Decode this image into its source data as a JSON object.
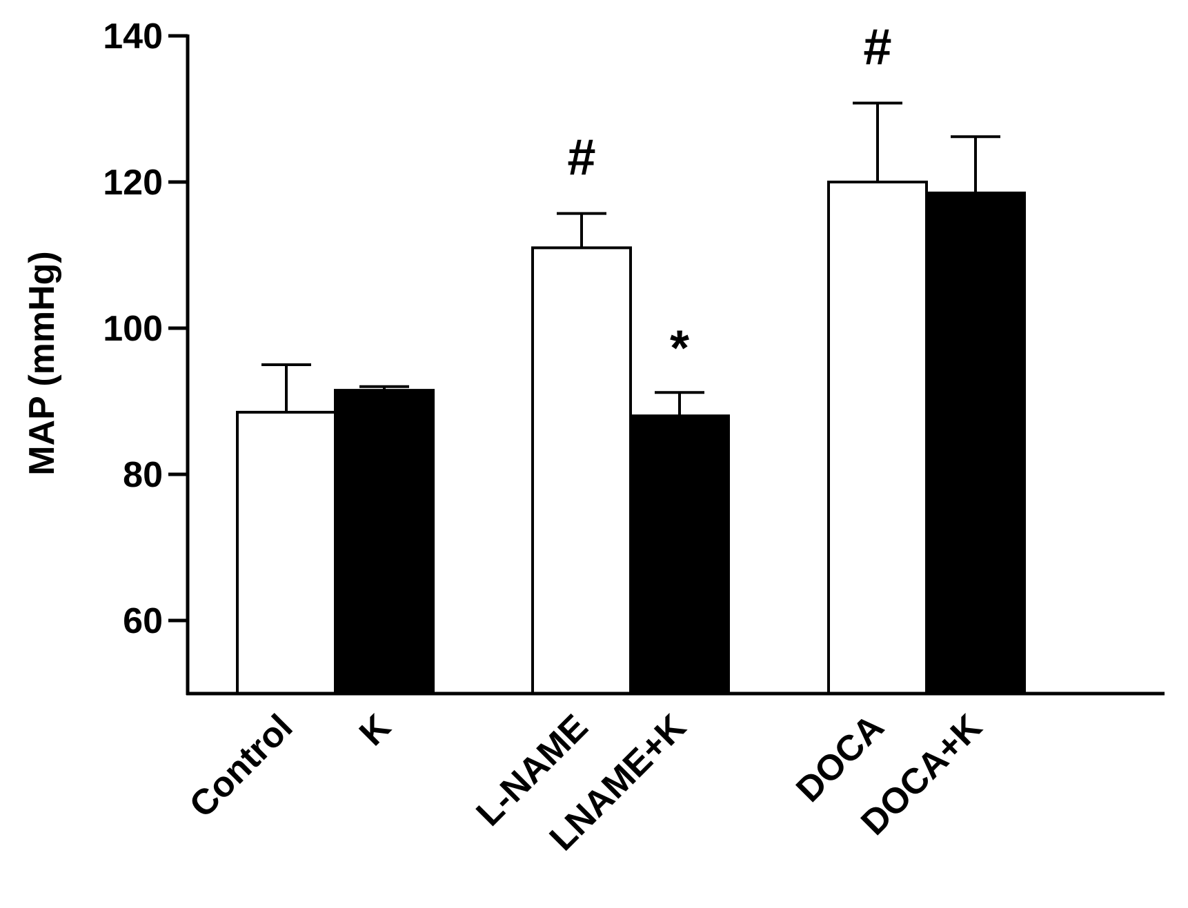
{
  "chart_data": {
    "type": "bar",
    "title": "",
    "xlabel": "",
    "ylabel": "MAP (mmHg)",
    "ylim": [
      50,
      140
    ],
    "yticks": [
      60,
      80,
      100,
      120,
      140
    ],
    "grid": false,
    "categories": [
      "Control",
      "K",
      "L-NAME",
      "LNAME+K",
      "DOCA",
      "DOCA+K"
    ],
    "groups": [
      {
        "members": [
          0,
          1
        ]
      },
      {
        "members": [
          2,
          3
        ]
      },
      {
        "members": [
          4,
          5
        ]
      }
    ],
    "values": [
      88.5,
      91.5,
      111,
      88,
      120,
      118.5
    ],
    "errors": [
      6.5,
      0.5,
      4.7,
      3.2,
      10.8,
      7.7
    ],
    "fills": [
      "#ffffff",
      "#000000",
      "#ffffff",
      "#000000",
      "#ffffff",
      "#000000"
    ],
    "annotations": [
      {
        "bar": 2,
        "text": "#"
      },
      {
        "bar": 3,
        "text": "*"
      },
      {
        "bar": 4,
        "text": "#"
      }
    ]
  }
}
